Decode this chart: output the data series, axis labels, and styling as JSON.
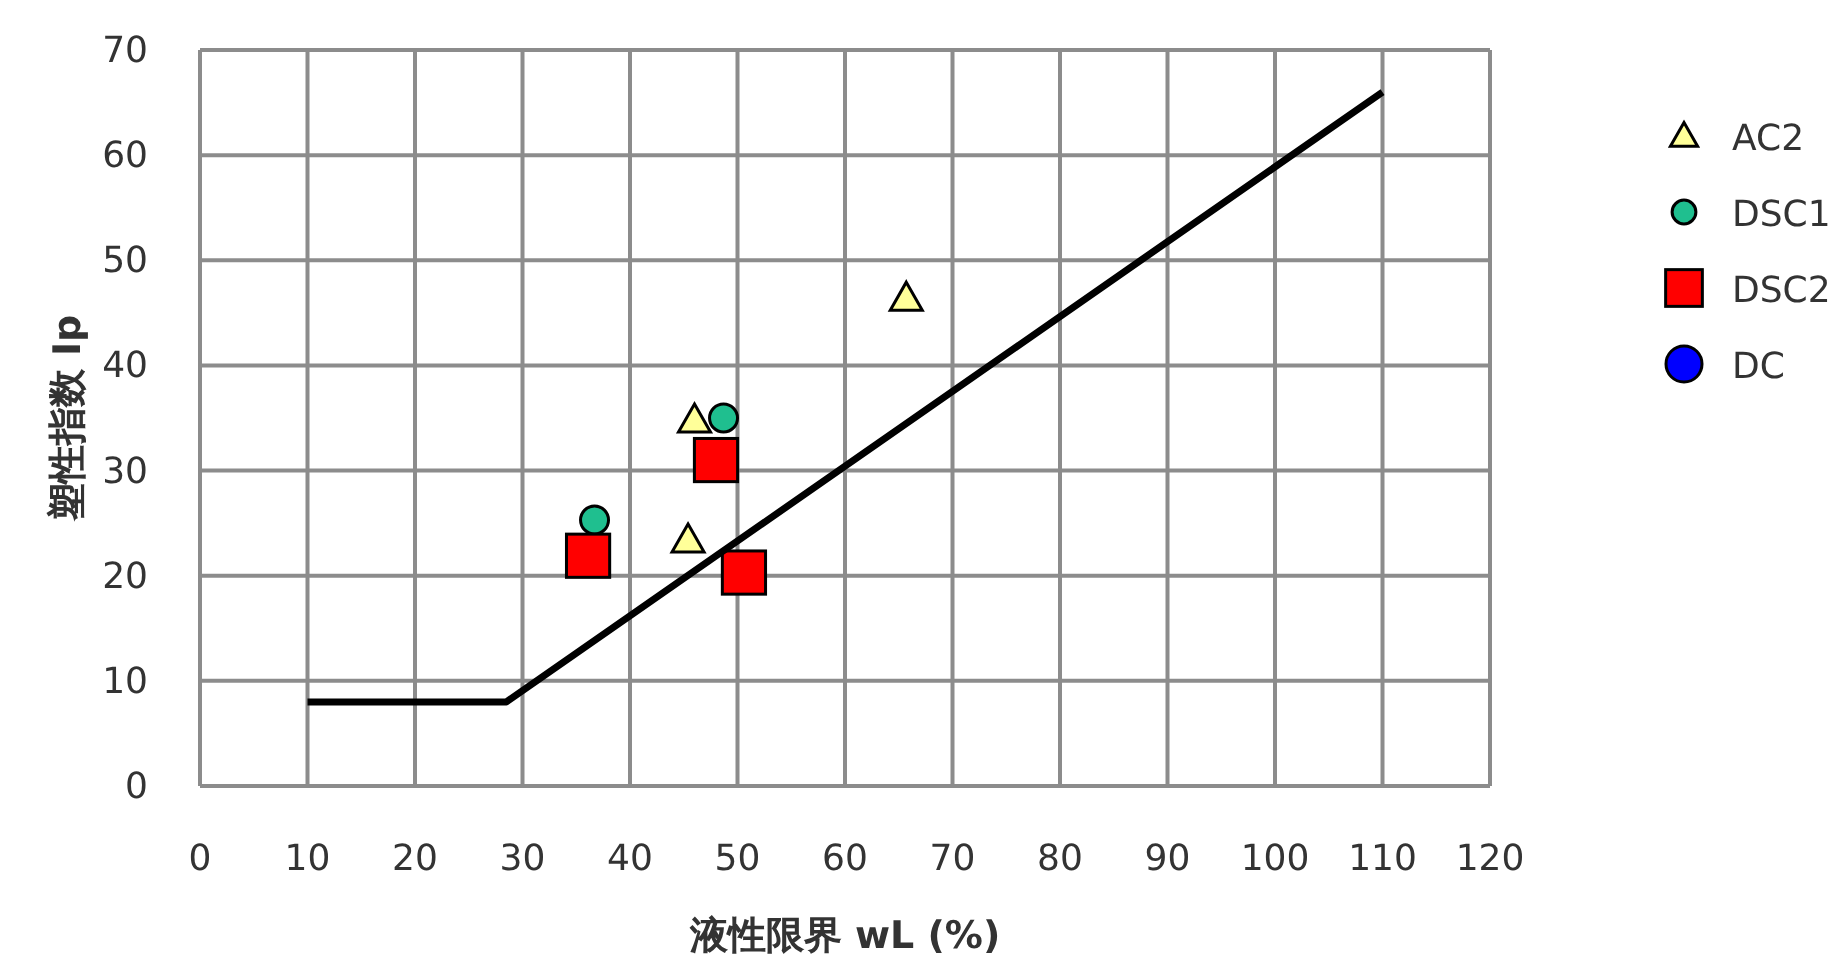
{
  "chart_data": {
    "type": "scatter",
    "xlabel": "液性限界 wL (%)",
    "ylabel": "塑性指数 Ip",
    "xlim": [
      0,
      120
    ],
    "xticks": [
      0,
      10,
      20,
      30,
      40,
      50,
      60,
      70,
      80,
      90,
      100,
      110,
      120
    ],
    "ylim": [
      0,
      70
    ],
    "yticks": [
      0,
      10,
      20,
      30,
      40,
      50,
      60,
      70
    ],
    "grid": true,
    "legend": "right",
    "series": [
      {
        "name": "AC2",
        "color": "#ffff99",
        "marker": "triangle",
        "x": [
          46,
          45.4,
          65.7
        ],
        "values": [
          34.8,
          23.4,
          46.4
        ]
      },
      {
        "name": "DSC1",
        "color": "#1fbf8f",
        "marker": "circle",
        "x": [
          36.7,
          48.7
        ],
        "values": [
          25.3,
          35.0
        ]
      },
      {
        "name": "DSC2",
        "color": "#ff0000",
        "marker": "square",
        "x": [
          36.1,
          48,
          50.6
        ],
        "values": [
          21.9,
          31,
          20.3
        ]
      },
      {
        "name": "DC",
        "color": "#0000ff",
        "marker": "circle"
      },
      {
        "type": "line",
        "color": "#000000",
        "marker": "none",
        "x": [
          10,
          28.5,
          110
        ],
        "values": [
          8,
          8,
          66
        ]
      }
    ]
  }
}
